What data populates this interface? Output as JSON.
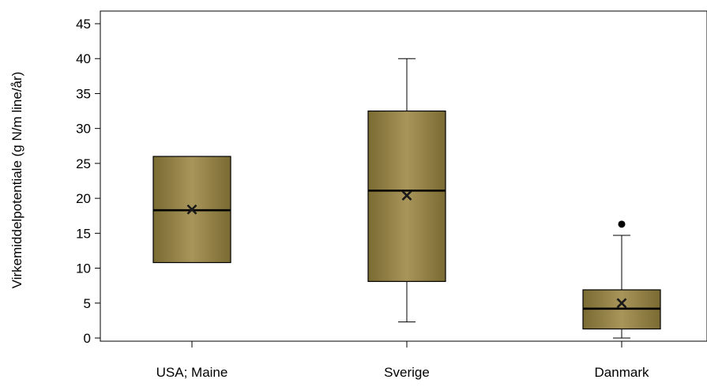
{
  "chart_data": {
    "type": "box",
    "title": "",
    "xlabel": "",
    "ylabel": "Virkemiddelpotentiale (g N/m line/år)",
    "ylim": [
      0,
      45
    ],
    "yticks": [
      0,
      5,
      10,
      15,
      20,
      25,
      30,
      35,
      40,
      45
    ],
    "grid": false,
    "legend": "none",
    "categories": [
      "USA; Maine",
      "Sverige",
      "Danmark"
    ],
    "boxes": [
      {
        "category": "USA; Maine",
        "min": 10.8,
        "q1": 10.8,
        "median": 18.3,
        "mean": 18.4,
        "q3": 26.0,
        "max": 26.0,
        "outliers": []
      },
      {
        "category": "Sverige",
        "min": 2.3,
        "q1": 8.1,
        "median": 21.1,
        "mean": 20.4,
        "q3": 32.5,
        "max": 40.0,
        "outliers": []
      },
      {
        "category": "Danmark",
        "min": 0.0,
        "q1": 1.3,
        "median": 4.2,
        "mean": 5.0,
        "q3": 6.9,
        "max": 14.7,
        "outliers": [
          16.3
        ]
      }
    ],
    "colors": {
      "box_dark": "#7a6b32",
      "box_light": "#a8955a",
      "stroke": "#000000"
    }
  }
}
